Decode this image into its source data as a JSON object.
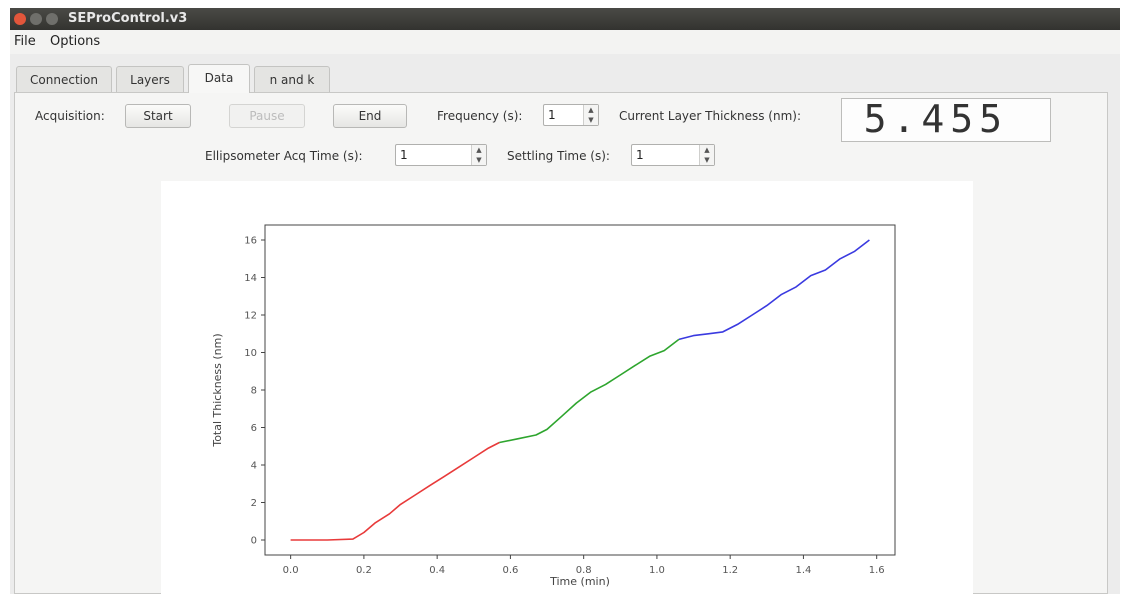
{
  "window": {
    "title": "SEProControl.v3"
  },
  "menu": {
    "file": "File",
    "options": "Options"
  },
  "tabs": [
    {
      "label": "Connection"
    },
    {
      "label": "Layers"
    },
    {
      "label": "Data",
      "active": true
    },
    {
      "label": "n and k"
    }
  ],
  "controls": {
    "acquisition_label": "Acquisition:",
    "start_label": "Start",
    "pause_label": "Pause",
    "end_label": "End",
    "frequency_label": "Frequency (s):",
    "frequency_value": "1",
    "current_thickness_label": "Current Layer Thickness (nm):",
    "current_thickness_value": "5.455",
    "ellipsometer_label": "Ellipsometer Acq Time (s):",
    "ellipsometer_value": "1",
    "settling_label": "Settling Time (s):",
    "settling_value": "1"
  },
  "colors": {
    "layer1": "#e83a3a",
    "layer2": "#2ea52e",
    "layer3": "#3a3ae0"
  },
  "chart_data": {
    "type": "line",
    "title": "",
    "xlabel": "Time (min)",
    "ylabel": "Total Thickness (nm)",
    "xlim": [
      -0.07,
      1.65
    ],
    "ylim": [
      -0.8,
      16.8
    ],
    "xticks": [
      "0.0",
      "0.2",
      "0.4",
      "0.6",
      "0.8",
      "1.0",
      "1.2",
      "1.4",
      "1.6"
    ],
    "yticks": [
      "0",
      "2",
      "4",
      "6",
      "8",
      "10",
      "12",
      "14",
      "16"
    ],
    "grid": false,
    "series": [
      {
        "color": "#e83a3a",
        "x": [
          0.0,
          0.05,
          0.1,
          0.17,
          0.2,
          0.23,
          0.27,
          0.3,
          0.34,
          0.38,
          0.42,
          0.46,
          0.5,
          0.54,
          0.57
        ],
        "y": [
          0.0,
          0.0,
          0.0,
          0.05,
          0.4,
          0.9,
          1.4,
          1.9,
          2.4,
          2.9,
          3.4,
          3.9,
          4.4,
          4.9,
          5.2
        ]
      },
      {
        "color": "#2ea52e",
        "x": [
          0.57,
          0.62,
          0.67,
          0.7,
          0.74,
          0.78,
          0.82,
          0.86,
          0.9,
          0.94,
          0.98,
          1.02,
          1.06
        ],
        "y": [
          5.2,
          5.4,
          5.6,
          5.9,
          6.6,
          7.3,
          7.9,
          8.3,
          8.8,
          9.3,
          9.8,
          10.1,
          10.7
        ]
      },
      {
        "color": "#3a3ae0",
        "x": [
          1.06,
          1.1,
          1.14,
          1.18,
          1.22,
          1.26,
          1.3,
          1.34,
          1.38,
          1.42,
          1.46,
          1.5,
          1.54,
          1.58
        ],
        "y": [
          10.7,
          10.9,
          11.0,
          11.1,
          11.5,
          12.0,
          12.5,
          13.1,
          13.5,
          14.1,
          14.4,
          15.0,
          15.4,
          16.0
        ]
      }
    ]
  }
}
